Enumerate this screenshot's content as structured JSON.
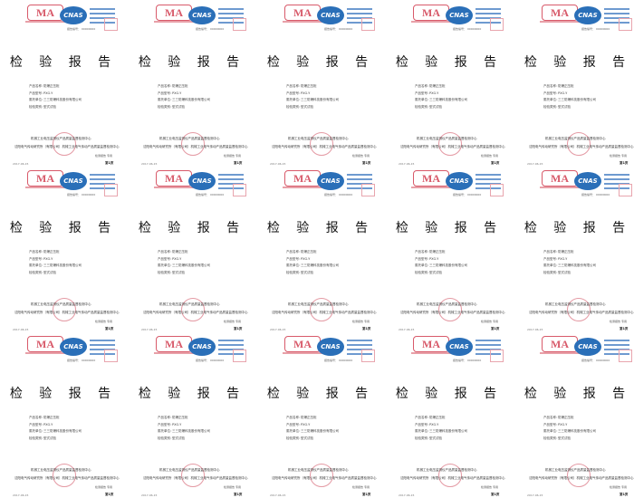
{
  "report": {
    "ma_logo": "MA",
    "cnas_logo": "CNAS",
    "report_number": "报告编号： 00000000",
    "title": "检 验 报 告",
    "fields": [
      {
        "label": "产品名称：",
        "value": "防爆正压柜"
      },
      {
        "label": "产品型号：",
        "value": "PXG-Y"
      },
      {
        "label": "委托单位：",
        "value": "三三防爆科技股份有限公司"
      },
      {
        "label": "检验类别：",
        "value": "型式试验"
      }
    ],
    "bottom_line_1": "机械工业电压监测仪产品质量监督检测中心",
    "bottom_line_2": "沈阳电气传动研究所（有限公司）机械工业电气传动产品质量监督检测中心",
    "issuer": "检测报告 专用",
    "date": "2017-06-15",
    "page": "第1页"
  },
  "grid": {
    "columns": 5,
    "rows": 3
  },
  "colors": {
    "ma_red": "#d85a6a",
    "cnas_blue": "#2a6fb8",
    "seal_red": "#e49aa4"
  }
}
